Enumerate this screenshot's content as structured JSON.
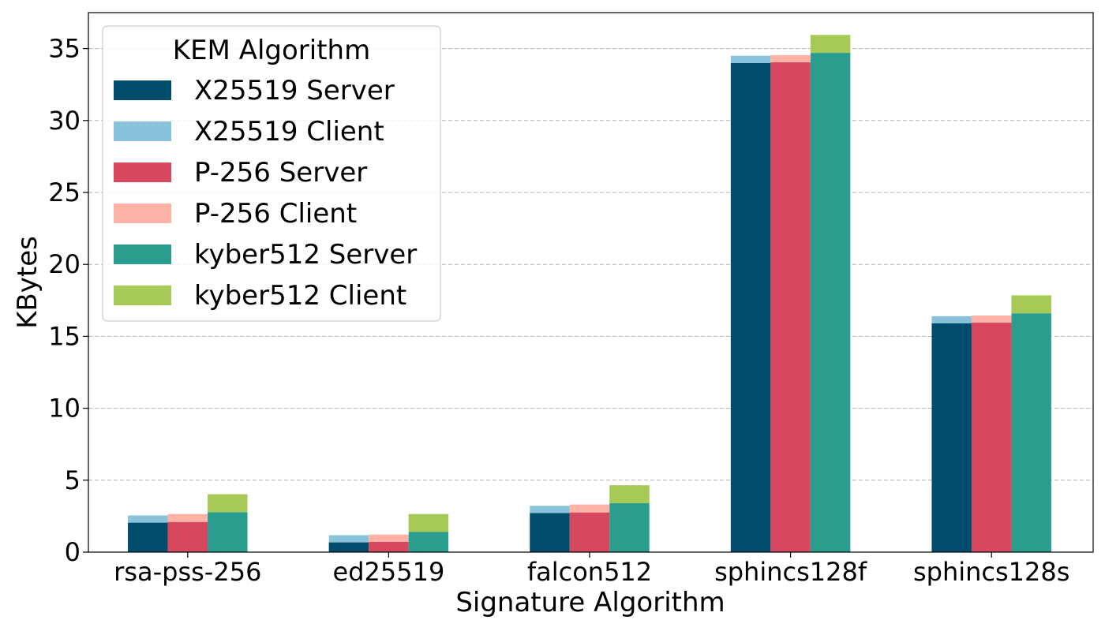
{
  "chart_data": {
    "type": "bar",
    "xlabel": "Signature Algorithm",
    "ylabel": "KBytes",
    "ylim": [
      0,
      37.5
    ],
    "yticks": [
      0,
      5,
      10,
      15,
      20,
      25,
      30,
      35
    ],
    "grid": "y-dashed",
    "categories": [
      "rsa-pss-256",
      "ed25519",
      "falcon512",
      "sphincs128f",
      "sphincs128s"
    ],
    "legend": {
      "title": "KEM Algorithm",
      "placement": "top-left",
      "entries": [
        "X25519 Server",
        "X25519 Client",
        "P-256 Server",
        "P-256 Client",
        "kyber512 Server",
        "kyber512 Client"
      ]
    },
    "series": [
      {
        "kem": "X25519",
        "server": {
          "name": "X25519 Server",
          "color": "#004c6d",
          "values": [
            2.05,
            0.68,
            2.72,
            34.0,
            15.9
          ]
        },
        "client": {
          "name": "X25519 Client",
          "color": "#89c3db",
          "values": [
            0.5,
            0.5,
            0.5,
            0.5,
            0.5
          ]
        }
      },
      {
        "kem": "P-256",
        "server": {
          "name": "P-256 Server",
          "color": "#d5485e",
          "values": [
            2.1,
            0.72,
            2.76,
            34.05,
            15.95
          ]
        },
        "client": {
          "name": "P-256 Client",
          "color": "#ffb3a6",
          "values": [
            0.55,
            0.5,
            0.55,
            0.5,
            0.5
          ]
        }
      },
      {
        "kem": "kyber512",
        "server": {
          "name": "kyber512 Server",
          "color": "#2a9d8f",
          "values": [
            2.78,
            1.4,
            3.4,
            34.7,
            16.6
          ]
        },
        "client": {
          "name": "kyber512 Client",
          "color": "#a7c957",
          "values": [
            1.25,
            1.25,
            1.25,
            1.25,
            1.25
          ]
        }
      }
    ]
  }
}
